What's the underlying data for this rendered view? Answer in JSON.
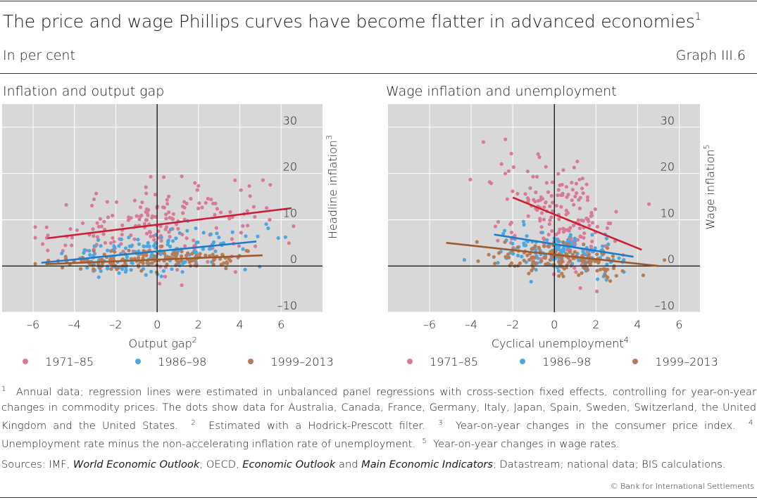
{
  "header": {
    "title": "The price and wage Phillips curves have become flatter in advanced economies",
    "title_note": "1",
    "subtitle": "In per cent",
    "graph_id": "Graph III.6"
  },
  "colors": {
    "plot_bg": "#d8d8d8",
    "s1971": "#d87a96",
    "s1986": "#4aa8e0",
    "s1999": "#b77c56",
    "l1971": "#cc1f36",
    "l1986": "#1f7bc8",
    "l1999": "#9b5a2e"
  },
  "chart_data": [
    {
      "type": "scatter",
      "title": "Inflation and output gap",
      "xlabel": "Output gap",
      "xlabel_note": "2",
      "ylabel": "Headline inflation",
      "ylabel_note": "3",
      "xlim": [
        -7.5,
        8
      ],
      "ylim": [
        -10,
        35
      ],
      "xticks": [
        -6,
        -4,
        -2,
        0,
        2,
        4,
        6
      ],
      "yticks": [
        -10,
        0,
        10,
        20,
        30
      ],
      "xtick_labels": [
        "–6",
        "–4",
        "–2",
        "0",
        "2",
        "4",
        "6"
      ],
      "ytick_labels": [
        "–10",
        "0",
        "10",
        "20",
        "30"
      ],
      "series": [
        {
          "name": "1971–85",
          "color_key": "s1971",
          "center": [
            0,
            9
          ],
          "spread": [
            2.6,
            4.5
          ],
          "count": 200,
          "slope": 0.5,
          "regression": [
            [
              -5.3,
              6.0
            ],
            [
              6.5,
              12.5
            ]
          ]
        },
        {
          "name": "1986–98",
          "color_key": "s1986",
          "center": [
            0,
            2.8
          ],
          "spread": [
            2.3,
            2.2
          ],
          "count": 150,
          "slope": 0.35,
          "regression": [
            [
              -5.6,
              0.7
            ],
            [
              4.8,
              5.3
            ]
          ]
        },
        {
          "name": "1999–2013",
          "color_key": "s1999",
          "center": [
            0,
            1.3
          ],
          "spread": [
            2.4,
            1.1
          ],
          "count": 150,
          "slope": 0.15,
          "regression": [
            [
              -5.4,
              0.4
            ],
            [
              5.1,
              2.3
            ]
          ]
        }
      ]
    },
    {
      "type": "scatter",
      "title": "Wage inflation and unemployment",
      "xlabel": "Cyclical unemployment",
      "xlabel_note": "4",
      "ylabel": "Wage inflation",
      "ylabel_note": "5",
      "xlim": [
        -8,
        7
      ],
      "ylim": [
        -10,
        35
      ],
      "xticks": [
        -6,
        -4,
        -2,
        0,
        2,
        4,
        6
      ],
      "yticks": [
        -10,
        0,
        10,
        20,
        30
      ],
      "xtick_labels": [
        "–6",
        "–4",
        "–2",
        "0",
        "2",
        "4",
        "6"
      ],
      "ytick_labels": [
        "–10",
        "0",
        "10",
        "20",
        "30"
      ],
      "series": [
        {
          "name": "1971–85",
          "color_key": "s1971",
          "center": [
            0.3,
            11
          ],
          "spread": [
            1.4,
            5.5
          ],
          "count": 190,
          "slope": -1.6,
          "regression": [
            [
              -2.0,
              14.8
            ],
            [
              4.2,
              3.5
            ]
          ]
        },
        {
          "name": "1986–98",
          "color_key": "s1986",
          "center": [
            0.2,
            3.3
          ],
          "spread": [
            1.5,
            2.2
          ],
          "count": 150,
          "slope": -0.6,
          "regression": [
            [
              -2.9,
              6.8
            ],
            [
              3.8,
              2.0
            ]
          ]
        },
        {
          "name": "1999–2013",
          "color_key": "s1999",
          "center": [
            0.4,
            1.2
          ],
          "spread": [
            1.7,
            1.7
          ],
          "count": 150,
          "slope": -0.4,
          "regression": [
            [
              -5.2,
              5.0
            ],
            [
              5.0,
              0.0
            ]
          ]
        }
      ]
    }
  ],
  "legend": [
    "1971–85",
    "1986–98",
    "1999–2013"
  ],
  "notes": {
    "n1": "1",
    "t1": "Annual data; regression lines were estimated in unbalanced panel regressions with cross-section fixed effects, controlling for year-on-year changes in commodity prices. The dots show data for Australia, Canada, France, Germany, Italy, Japan, Spain, Sweden, Switzerland, the United Kingdom and the United States.",
    "n2": "2",
    "t2": "Estimated with a Hodrick-Prescott filter.",
    "n3": "3",
    "t3": "Year-on-year changes in the consumer price index.",
    "n4": "4",
    "t4": "Unemployment rate minus the non-accelerating inflation rate of unemployment.",
    "n5": "5",
    "t5": "Year-on-year changes in wage rates."
  },
  "sources": {
    "prefix": "Sources: IMF, ",
    "weo": "World Economic Outlook",
    "mid1": "; OECD, ",
    "eo": "Economic Outlook",
    "mid2": " and ",
    "mei": "Main Economic Indicators",
    "suffix": "; Datastream; national data; BIS calculations."
  },
  "copyright": "© Bank for International Settlements"
}
